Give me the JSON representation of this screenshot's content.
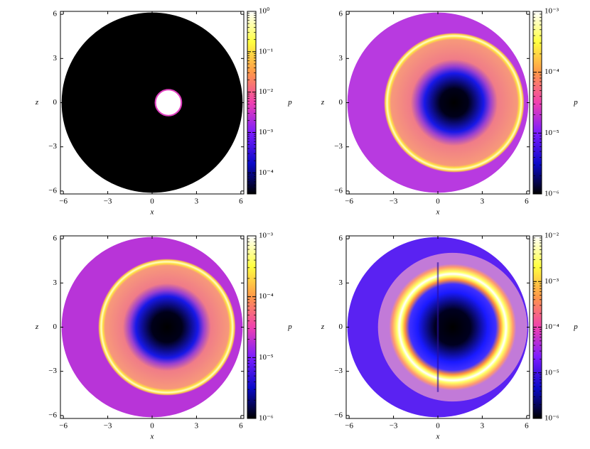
{
  "chart_data": [
    {
      "type": "heatmap",
      "xlabel": "x",
      "ylabel": "z",
      "colorbar_label": "p",
      "xlim": [
        -6.2,
        6.2
      ],
      "ylim": [
        -6.2,
        6.2
      ],
      "xticks": [
        {
          "value": -6,
          "label": "−6"
        },
        {
          "value": -3,
          "label": "−3"
        },
        0,
        3,
        6
      ],
      "yticks": [
        {
          "value": -6,
          "label": "−6"
        },
        {
          "value": -3,
          "label": "−3"
        },
        0,
        3,
        6
      ],
      "clim": [
        3e-05,
        1
      ],
      "color_log_scale": true,
      "cticks": [
        {
          "value": 1,
          "label": "10⁰"
        },
        {
          "value": 0.1,
          "label": "10⁻¹"
        },
        {
          "value": 0.01,
          "label": "10⁻²"
        },
        {
          "value": 0.001,
          "label": "10⁻³"
        },
        {
          "value": 0.0001,
          "label": "10⁻⁴"
        }
      ],
      "colormap": [
        "#000000",
        "#0a0ac8",
        "#7a1cff",
        "#f040b0",
        "#ff9848",
        "#ffff40",
        "#ffffff"
      ]
    },
    {
      "type": "heatmap",
      "xlabel": "x",
      "ylabel": "z",
      "colorbar_label": "p",
      "xlim": [
        -6.2,
        6.2
      ],
      "ylim": [
        -6.2,
        6.2
      ],
      "xticks": [
        {
          "value": -6,
          "label": "−6"
        },
        {
          "value": -3,
          "label": "−3"
        },
        0,
        3,
        6
      ],
      "yticks": [
        {
          "value": -6,
          "label": "−6"
        },
        {
          "value": -3,
          "label": "−3"
        },
        0,
        3,
        6
      ],
      "clim": [
        1e-06,
        0.001
      ],
      "color_log_scale": true,
      "cticks": [
        {
          "value": 0.001,
          "label": "10⁻³"
        },
        {
          "value": 0.0001,
          "label": "10⁻⁴"
        },
        {
          "value": 1e-05,
          "label": "10⁻⁵"
        },
        {
          "value": 1e-06,
          "label": "10⁻⁶"
        }
      ],
      "colormap": [
        "#000000",
        "#0a0ac8",
        "#7a1cff",
        "#f040b0",
        "#ff9848",
        "#ffff40",
        "#ffffff"
      ]
    },
    {
      "type": "heatmap",
      "xlabel": "x",
      "ylabel": "z",
      "colorbar_label": "p",
      "xlim": [
        -6.2,
        6.2
      ],
      "ylim": [
        -6.2,
        6.2
      ],
      "xticks": [
        {
          "value": -6,
          "label": "−6"
        },
        {
          "value": -3,
          "label": "−3"
        },
        0,
        3,
        6
      ],
      "yticks": [
        {
          "value": -6,
          "label": "−6"
        },
        {
          "value": -3,
          "label": "−3"
        },
        0,
        3,
        6
      ],
      "clim": [
        1e-06,
        0.001
      ],
      "color_log_scale": true,
      "cticks": [
        {
          "value": 0.001,
          "label": "10⁻³"
        },
        {
          "value": 0.0001,
          "label": "10⁻⁴"
        },
        {
          "value": 1e-05,
          "label": "10⁻⁵"
        },
        {
          "value": 1e-06,
          "label": "10⁻⁶"
        }
      ],
      "colormap": [
        "#000000",
        "#0a0ac8",
        "#7a1cff",
        "#f040b0",
        "#ff9848",
        "#ffff40",
        "#ffffff"
      ]
    },
    {
      "type": "heatmap",
      "xlabel": "x",
      "ylabel": "z",
      "colorbar_label": "p",
      "xlim": [
        -6.2,
        6.2
      ],
      "ylim": [
        -6.2,
        6.2
      ],
      "xticks": [
        {
          "value": -6,
          "label": "−6"
        },
        {
          "value": -3,
          "label": "−3"
        },
        0,
        3,
        6
      ],
      "yticks": [
        {
          "value": -6,
          "label": "−6"
        },
        {
          "value": -3,
          "label": "−3"
        },
        0,
        3,
        6
      ],
      "clim": [
        1e-06,
        0.01
      ],
      "color_log_scale": true,
      "cticks": [
        {
          "value": 0.01,
          "label": "10⁻²"
        },
        {
          "value": 0.001,
          "label": "10⁻³"
        },
        {
          "value": 0.0001,
          "label": "10⁻⁴"
        },
        {
          "value": 1e-05,
          "label": "10⁻⁵"
        },
        {
          "value": 1e-06,
          "label": "10⁻⁶"
        }
      ],
      "colormap": [
        "#000000",
        "#0a0ac8",
        "#7a1cff",
        "#f040b0",
        "#ff9848",
        "#ffff40",
        "#ffffff"
      ]
    }
  ]
}
